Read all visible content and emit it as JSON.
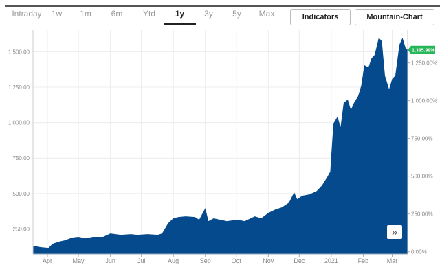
{
  "tabs": [
    {
      "label": "Intraday"
    },
    {
      "label": "1w"
    },
    {
      "label": "1m"
    },
    {
      "label": "6m"
    },
    {
      "label": "Ytd"
    },
    {
      "label": "1y",
      "active": true
    },
    {
      "label": "3y"
    },
    {
      "label": "5y"
    },
    {
      "label": "Max"
    }
  ],
  "buttons": {
    "indicators": "Indicators",
    "chart_type": "Mountain-Chart"
  },
  "more_icon": "double-chevron-right-icon",
  "colors": {
    "area": "#054a8c",
    "badge": "#27b65a",
    "grid": "#ececec"
  },
  "chart_data": {
    "type": "area",
    "x": [
      "2020-03-18",
      "2020-03-26",
      "2020-04-02",
      "2020-04-06",
      "2020-04-12",
      "2020-04-18",
      "2020-04-25",
      "2020-05-01",
      "2020-05-08",
      "2020-05-15",
      "2020-05-25",
      "2020-06-01",
      "2020-06-11",
      "2020-06-21",
      "2020-06-27",
      "2020-07-07",
      "2020-07-17",
      "2020-07-21",
      "2020-07-27",
      "2020-08-01",
      "2020-08-06",
      "2020-08-13",
      "2020-08-22",
      "2020-08-26",
      "2020-09-01",
      "2020-09-04",
      "2020-09-09",
      "2020-09-15",
      "2020-09-22",
      "2020-10-02",
      "2020-10-09",
      "2020-10-19",
      "2020-10-25",
      "2020-11-01",
      "2020-11-08",
      "2020-11-14",
      "2020-11-21",
      "2020-11-26",
      "2020-11-29",
      "2020-12-04",
      "2020-12-11",
      "2020-12-18",
      "2020-12-23",
      "2020-12-28",
      "2020-12-31",
      "2021-01-03",
      "2021-01-07",
      "2021-01-10",
      "2021-01-13",
      "2021-01-17",
      "2021-01-20",
      "2021-01-23",
      "2021-01-27",
      "2021-01-30",
      "2021-02-02",
      "2021-02-06",
      "2021-02-09",
      "2021-02-12",
      "2021-02-16",
      "2021-02-19",
      "2021-02-22",
      "2021-02-26",
      "2021-03-01",
      "2021-03-04",
      "2021-03-08",
      "2021-03-11",
      "2021-03-14",
      "2021-03-16"
    ],
    "values": [
      131,
      121,
      116,
      145,
      160,
      170,
      189,
      194,
      184,
      194,
      194,
      218,
      208,
      213,
      208,
      213,
      208,
      218,
      291,
      325,
      334,
      339,
      334,
      315,
      397,
      305,
      325,
      315,
      305,
      315,
      305,
      339,
      325,
      363,
      388,
      402,
      436,
      509,
      460,
      485,
      494,
      518,
      557,
      615,
      654,
      993,
      1042,
      969,
      1139,
      1163,
      1090,
      1139,
      1187,
      1260,
      1405,
      1390,
      1454,
      1478,
      1599,
      1575,
      1332,
      1235,
      1308,
      1332,
      1550,
      1599,
      1526,
      1516
    ],
    "x_ticks": [
      {
        "date": "2020-04-01",
        "label": "Apr"
      },
      {
        "date": "2020-05-01",
        "label": "May"
      },
      {
        "date": "2020-06-01",
        "label": "Jun"
      },
      {
        "date": "2020-07-01",
        "label": "Jul"
      },
      {
        "date": "2020-08-01",
        "label": "Aug"
      },
      {
        "date": "2020-09-01",
        "label": "Sep"
      },
      {
        "date": "2020-10-01",
        "label": "Oct"
      },
      {
        "date": "2020-11-01",
        "label": "Nov"
      },
      {
        "date": "2020-12-01",
        "label": "Dec"
      },
      {
        "date": "2021-01-01",
        "label": "2021"
      },
      {
        "date": "2021-02-01",
        "label": "Feb"
      },
      {
        "date": "2021-03-01",
        "label": "Mar"
      }
    ],
    "xlim": [
      "2020-03-18",
      "2021-03-16"
    ],
    "ylim": [
      73,
      1657
    ],
    "y_ticks": [
      {
        "value": 250,
        "label": "250.00"
      },
      {
        "value": 500,
        "label": "500.00"
      },
      {
        "value": 750,
        "label": "750.00"
      },
      {
        "value": 1000,
        "label": "1,000.00"
      },
      {
        "value": 1250,
        "label": "1,250.00"
      },
      {
        "value": 1500,
        "label": "1,500.00"
      }
    ],
    "y2lim": [
      -15,
      1471
    ],
    "y2_ticks": [
      {
        "value": 0,
        "label": "0.00%"
      },
      {
        "value": 250,
        "label": "250.00%"
      },
      {
        "value": 500,
        "label": "500.00%"
      },
      {
        "value": 750,
        "label": "750.00%"
      },
      {
        "value": 1000,
        "label": "1,000.00%"
      },
      {
        "value": 1250,
        "label": "1,250.00%"
      }
    ],
    "last_change": {
      "value": 1335.99,
      "label": "1,335.99%"
    },
    "grid": true
  }
}
